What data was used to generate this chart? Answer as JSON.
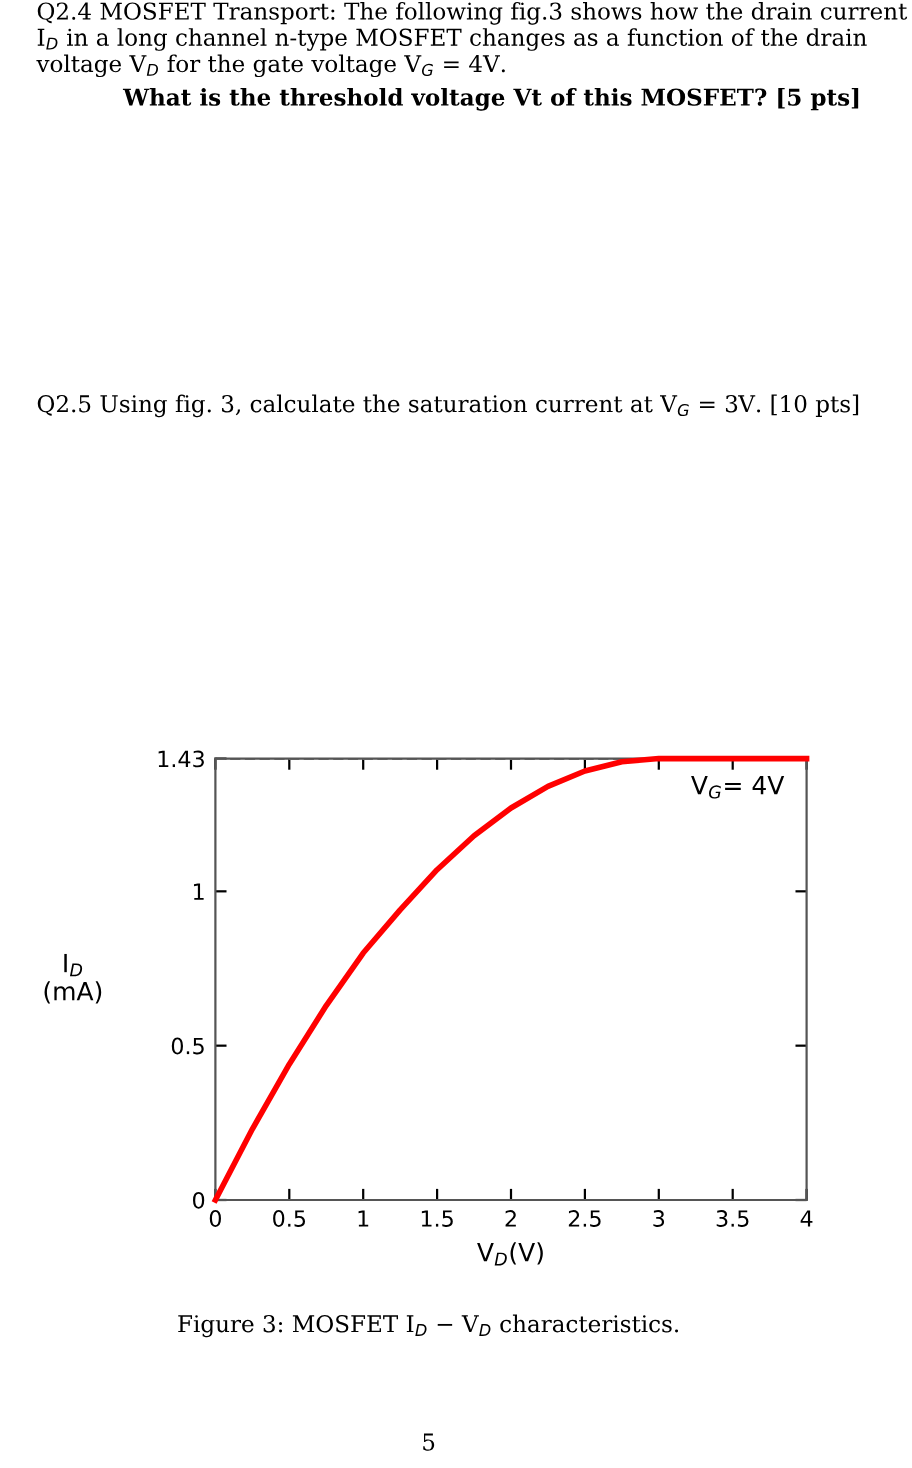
{
  "chart_data": {
    "type": "line",
    "annotations": [
      "Q2.4 MOSFET Transport: The following fig.3 shows how the drain current I$_{D}$ in a long channel n-type MOSFET changes as a function of the drain voltage V$_{D}$ for the gate voltage V$_{G}$ = 4V.",
      "What is the threshold voltage Vt of this MOSFET? [5 pts]",
      "Q2.5 Using fig. 3, calculate the saturation current at V$_{G}$ = 3V. [10 pts]",
      "Figure 3: MOSFET I$_{D}$ − V$_{D}$ characteristics.",
      "5"
    ],
    "xlabel": "V$_{D}$(V)",
    "ylabel": "I$_{D}$\n(mA)",
    "series": [
      {
        "name": "V$_{G}$= 4V",
        "color": "#ff0000",
        "x": [
          0,
          0.25,
          0.5,
          0.75,
          1,
          1.25,
          1.5,
          1.75,
          2,
          2.25,
          2.5,
          2.75,
          3,
          4
        ],
        "values": [
          0,
          0.23,
          0.44,
          0.63,
          0.8,
          0.94,
          1.07,
          1.18,
          1.27,
          1.34,
          1.39,
          1.42,
          1.43,
          1.43
        ]
      }
    ],
    "xlim": [
      0,
      4
    ],
    "ylim": [
      0,
      1.43
    ],
    "xticks": [
      0,
      0.5,
      1,
      1.5,
      2,
      2.5,
      3,
      3.5,
      4
    ],
    "yticks": [
      0,
      0.5,
      1,
      1.43
    ],
    "ref_lines": [
      {
        "axis": "y",
        "value": 1.43,
        "color": "#808080",
        "line_style": "dashed"
      }
    ],
    "grid": false,
    "legend": false,
    "marker": "none",
    "line_style": "solid"
  }
}
